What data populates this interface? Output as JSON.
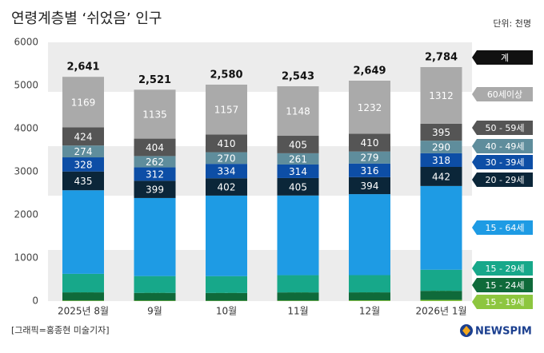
{
  "chart_data": {
    "type": "stacked_bar",
    "title": "연령계층별 ‘쉬었음’ 인구",
    "unit": "단위: 천명",
    "categories": [
      "2025년 8월",
      "9월",
      "10월",
      "11월",
      "12월",
      "2026년 1월"
    ],
    "ylim": [
      0,
      6000
    ],
    "yticks": [
      0,
      1000,
      2000,
      3000,
      4000,
      5000,
      6000
    ],
    "series": [
      {
        "name": "15 - 19세",
        "color": "#8dc63f",
        "data_labels": true,
        "values": [
          12,
          10,
          8,
          11,
          17,
          27
        ]
      },
      {
        "name": "15 - 24세",
        "color": "#0f6a3a",
        "data_labels": false,
        "values": [
          190,
          180,
          180,
          190,
          185,
          210
        ]
      },
      {
        "name": "15 - 29세",
        "color": "#17a88a",
        "data_labels": false,
        "values": [
          430,
          390,
          390,
          400,
          400,
          490
        ]
      },
      {
        "name": "15 - 64세",
        "color": "#1e9be4",
        "data_labels": false,
        "values": [
          1938,
          1810,
          1868,
          1847,
          1878,
          1942
        ]
      },
      {
        "name": "20 - 29세",
        "color": "#0b2639",
        "data_labels": true,
        "values": [
          435,
          399,
          402,
          405,
          394,
          442
        ]
      },
      {
        "name": "30 - 39세",
        "color": "#0d4ea6",
        "data_labels": true,
        "values": [
          328,
          312,
          334,
          314,
          316,
          318
        ]
      },
      {
        "name": "40 - 49세",
        "color": "#5f8d9c",
        "data_labels": true,
        "values": [
          274,
          262,
          270,
          261,
          279,
          290
        ]
      },
      {
        "name": "50 - 59세",
        "color": "#555555",
        "data_labels": true,
        "values": [
          424,
          404,
          410,
          405,
          410,
          395
        ]
      },
      {
        "name": "60세이상",
        "color": "#aaaaaa",
        "data_labels": true,
        "values": [
          1169,
          1135,
          1157,
          1148,
          1232,
          1312
        ]
      }
    ],
    "totals": {
      "name": "계",
      "color": "#111111",
      "values": [
        2641,
        2521,
        2580,
        2543,
        2649,
        2784
      ],
      "value_labels": [
        "2,641",
        "2,521",
        "2,580",
        "2,543",
        "2,649",
        "2,784"
      ]
    },
    "source": "[그래픽=홍종현 미술기자]",
    "logo": "NEWSPIM"
  }
}
